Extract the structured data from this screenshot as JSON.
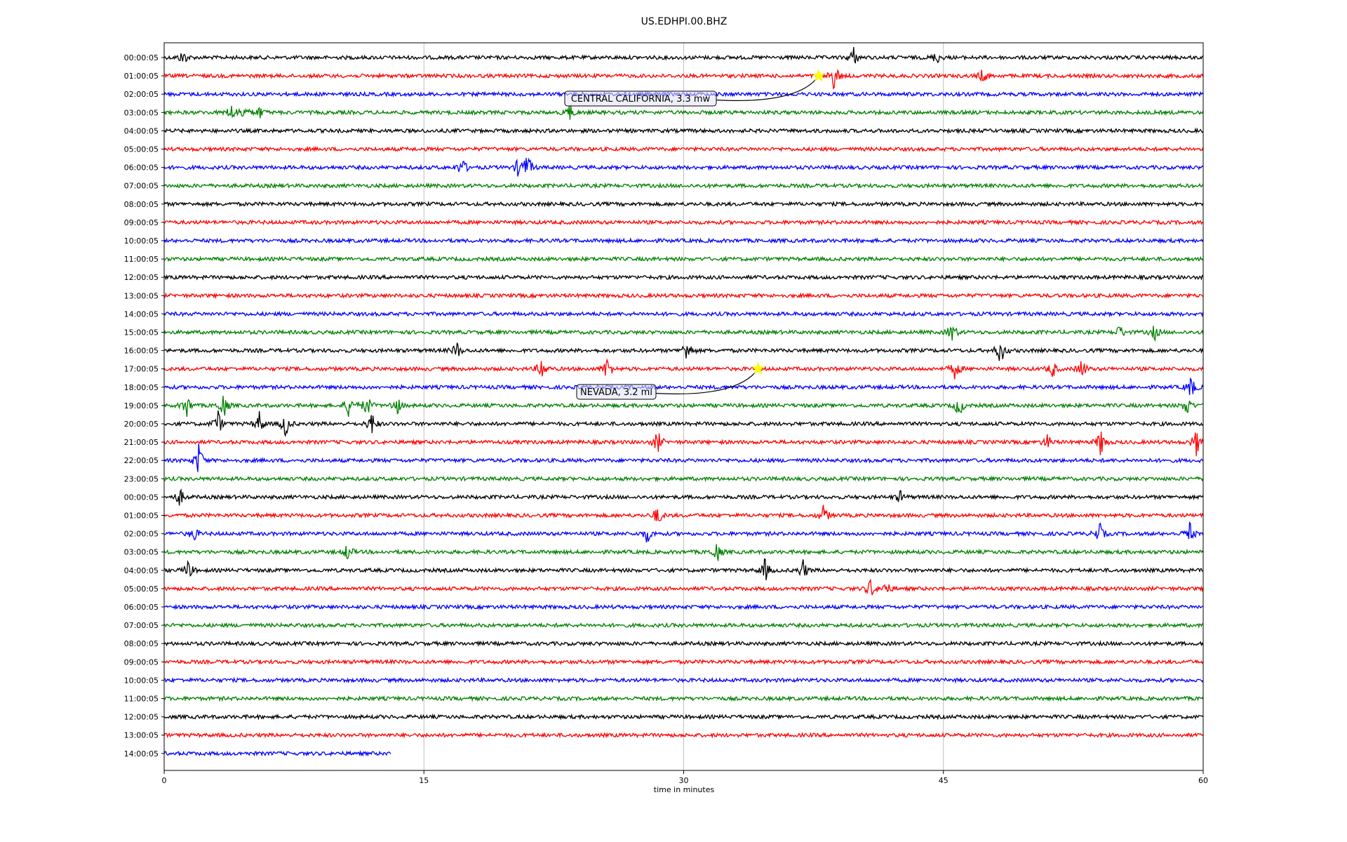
{
  "chart_data": {
    "type": "line",
    "title": "US.EDHPI.00.BHZ",
    "xlabel": "time in minutes",
    "ylabel": "",
    "xlim": [
      0,
      60
    ],
    "x_ticks": [
      "0",
      "15",
      "30",
      "45",
      "60"
    ],
    "x_tick_values": [
      0,
      15,
      30,
      45,
      60
    ],
    "grid": "vertical",
    "trace_colors": [
      "#000000",
      "#ff0000",
      "#0000ff",
      "#008000"
    ],
    "rows": [
      "00:00:05",
      "01:00:05",
      "02:00:05",
      "03:00:05",
      "04:00:05",
      "05:00:05",
      "06:00:05",
      "07:00:05",
      "08:00:05",
      "09:00:05",
      "10:00:05",
      "11:00:05",
      "12:00:05",
      "13:00:05",
      "14:00:05",
      "15:00:05",
      "16:00:05",
      "17:00:05",
      "18:00:05",
      "19:00:05",
      "20:00:05",
      "21:00:05",
      "22:00:05",
      "23:00:05",
      "00:00:05",
      "01:00:05",
      "02:00:05",
      "03:00:05",
      "04:00:05",
      "05:00:05",
      "06:00:05",
      "07:00:05",
      "08:00:05",
      "09:00:05",
      "10:00:05",
      "11:00:05",
      "12:00:05",
      "13:00:05",
      "14:00:05"
    ],
    "last_row_end_minute": 13.1,
    "events": [
      {
        "label": "CENTRAL CALIFORNIA, 3.3 mw",
        "row": 1,
        "minute": 37.8,
        "marker": "star",
        "marker_color": "#ffff00"
      },
      {
        "label": "NEVADA, 3.2 ml",
        "row": 17,
        "minute": 34.3,
        "marker": "star",
        "marker_color": "#ffff00"
      }
    ],
    "bursts": [
      {
        "row": 0,
        "minute": 1.1,
        "amp": 0.5
      },
      {
        "row": 0,
        "minute": 39.8,
        "amp": 0.7
      },
      {
        "row": 0,
        "minute": 44.6,
        "amp": 0.4
      },
      {
        "row": 1,
        "minute": 38.7,
        "amp": 1.0
      },
      {
        "row": 1,
        "minute": 47.3,
        "amp": 0.5
      },
      {
        "row": 3,
        "minute": 3.9,
        "amp": 0.6
      },
      {
        "row": 3,
        "minute": 4.6,
        "amp": 0.5
      },
      {
        "row": 3,
        "minute": 5.5,
        "amp": 0.4
      },
      {
        "row": 3,
        "minute": 23.4,
        "amp": 0.6
      },
      {
        "row": 6,
        "minute": 17.2,
        "amp": 0.7
      },
      {
        "row": 6,
        "minute": 20.5,
        "amp": 0.8
      },
      {
        "row": 6,
        "minute": 21.0,
        "amp": 0.9
      },
      {
        "row": 15,
        "minute": 45.5,
        "amp": 0.7
      },
      {
        "row": 15,
        "minute": 55.2,
        "amp": 0.5
      },
      {
        "row": 15,
        "minute": 57.2,
        "amp": 0.5
      },
      {
        "row": 16,
        "minute": 16.9,
        "amp": 0.6
      },
      {
        "row": 16,
        "minute": 30.2,
        "amp": 0.9
      },
      {
        "row": 16,
        "minute": 48.3,
        "amp": 1.0
      },
      {
        "row": 17,
        "minute": 21.8,
        "amp": 0.8
      },
      {
        "row": 17,
        "minute": 25.6,
        "amp": 0.9
      },
      {
        "row": 17,
        "minute": 45.7,
        "amp": 0.8
      },
      {
        "row": 17,
        "minute": 51.3,
        "amp": 0.6
      },
      {
        "row": 17,
        "minute": 53.0,
        "amp": 0.7
      },
      {
        "row": 18,
        "minute": 59.3,
        "amp": 0.8
      },
      {
        "row": 19,
        "minute": 1.3,
        "amp": 0.8
      },
      {
        "row": 19,
        "minute": 3.4,
        "amp": 1.0
      },
      {
        "row": 19,
        "minute": 10.7,
        "amp": 0.9
      },
      {
        "row": 19,
        "minute": 11.7,
        "amp": 0.8
      },
      {
        "row": 19,
        "minute": 13.4,
        "amp": 0.8
      },
      {
        "row": 19,
        "minute": 45.9,
        "amp": 0.8
      },
      {
        "row": 19,
        "minute": 59.1,
        "amp": 0.7
      },
      {
        "row": 20,
        "minute": 3.1,
        "amp": 0.9
      },
      {
        "row": 20,
        "minute": 5.5,
        "amp": 0.8
      },
      {
        "row": 20,
        "minute": 7.0,
        "amp": 0.9
      },
      {
        "row": 20,
        "minute": 12.0,
        "amp": 0.8
      },
      {
        "row": 21,
        "minute": 28.5,
        "amp": 0.8
      },
      {
        "row": 21,
        "minute": 54.1,
        "amp": 1.0
      },
      {
        "row": 21,
        "minute": 59.6,
        "amp": 0.9
      },
      {
        "row": 21,
        "minute": 51.0,
        "amp": 0.5
      },
      {
        "row": 22,
        "minute": 2.0,
        "amp": 1.2
      },
      {
        "row": 24,
        "minute": 0.9,
        "amp": 0.6
      },
      {
        "row": 24,
        "minute": 42.5,
        "amp": 0.4
      },
      {
        "row": 25,
        "minute": 28.5,
        "amp": 0.7
      },
      {
        "row": 25,
        "minute": 38.1,
        "amp": 0.7
      },
      {
        "row": 26,
        "minute": 1.7,
        "amp": 0.5
      },
      {
        "row": 26,
        "minute": 27.9,
        "amp": 0.6
      },
      {
        "row": 26,
        "minute": 54.0,
        "amp": 0.8
      },
      {
        "row": 26,
        "minute": 59.2,
        "amp": 0.8
      },
      {
        "row": 27,
        "minute": 10.6,
        "amp": 0.6
      },
      {
        "row": 27,
        "minute": 31.9,
        "amp": 0.8
      },
      {
        "row": 28,
        "minute": 1.4,
        "amp": 0.7
      },
      {
        "row": 28,
        "minute": 34.7,
        "amp": 0.8
      },
      {
        "row": 28,
        "minute": 36.9,
        "amp": 0.7
      },
      {
        "row": 29,
        "minute": 40.8,
        "amp": 0.7
      },
      {
        "row": 29,
        "minute": 41.7,
        "amp": 0.5
      }
    ]
  }
}
